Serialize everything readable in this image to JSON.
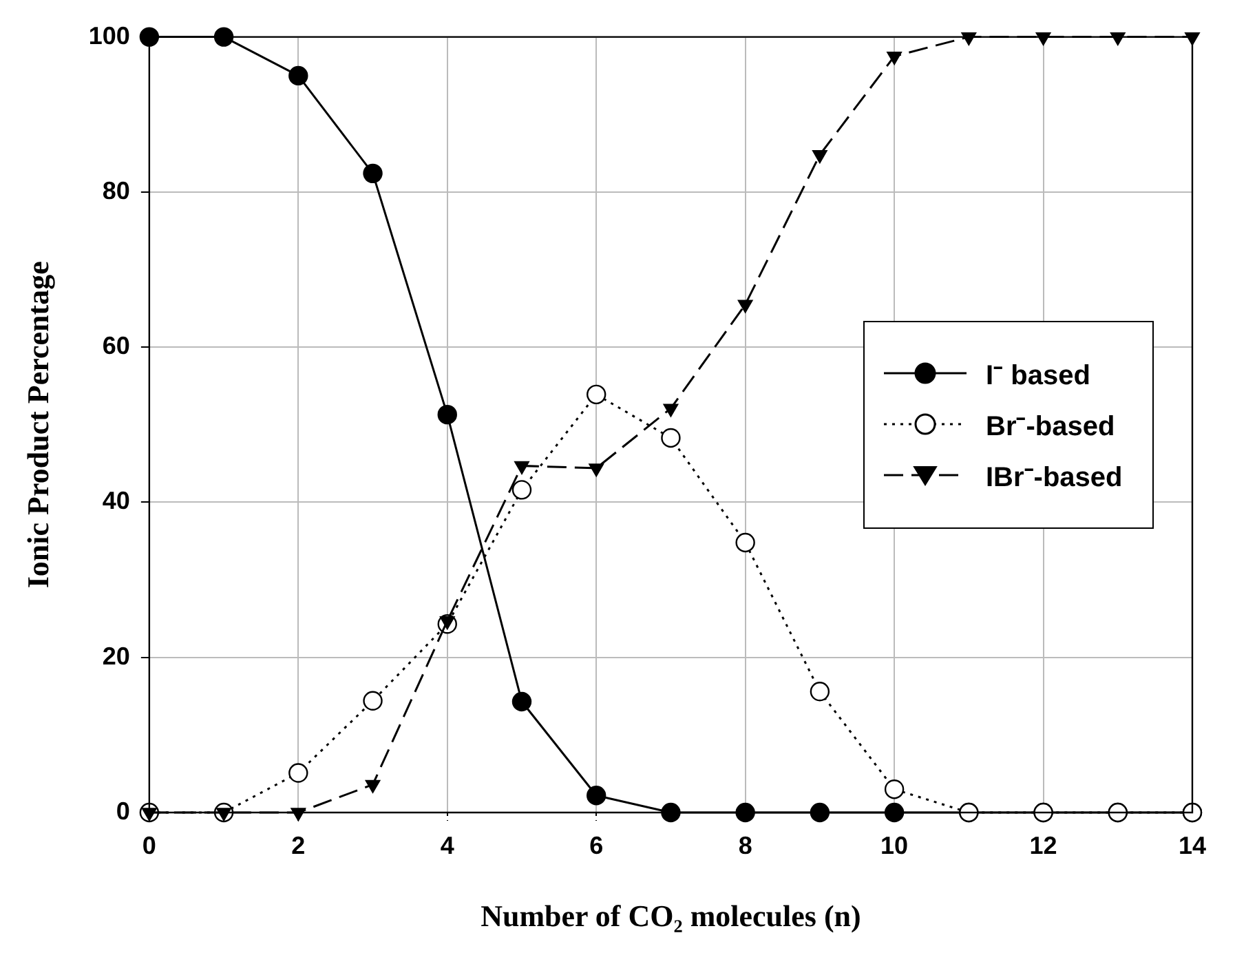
{
  "chart_data": {
    "type": "line",
    "xlabel": "Number of CO₂ molecules (n)",
    "ylabel": "Ionic Product Percentage",
    "x": [
      0,
      1,
      2,
      3,
      4,
      5,
      6,
      7,
      8,
      9,
      10,
      11,
      12,
      13,
      14
    ],
    "series": [
      {
        "name": "I⁻ based",
        "color": "#000000",
        "marker": "circle",
        "line_style": "solid",
        "values": [
          100,
          100,
          95,
          82.4,
          51.3,
          14.3,
          2.2,
          0,
          0,
          0,
          0,
          0,
          0,
          0,
          0
        ]
      },
      {
        "name": "Br⁻-based",
        "color": "#000000",
        "marker": "circle",
        "line_style": "dotted",
        "values": [
          0,
          0,
          5.1,
          14.4,
          24.3,
          41.6,
          53.9,
          48.3,
          34.8,
          15.6,
          3,
          0,
          0,
          0,
          0
        ]
      },
      {
        "name": "IBr⁻-based",
        "color": "#000000",
        "marker": "triangle",
        "line_style": "dashed",
        "values": [
          0,
          0,
          0,
          3.6,
          24.7,
          44.7,
          44.4,
          52.1,
          65.5,
          84.8,
          97.5,
          100,
          100,
          100,
          100
        ]
      }
    ],
    "xlim": [
      0,
      14
    ],
    "xticks": [
      0,
      2,
      4,
      6,
      8,
      10,
      12,
      14
    ],
    "ylim": [
      0,
      100
    ],
    "yticks": [
      0,
      20,
      40,
      60,
      80,
      100
    ],
    "grid": true,
    "legend": "right"
  }
}
